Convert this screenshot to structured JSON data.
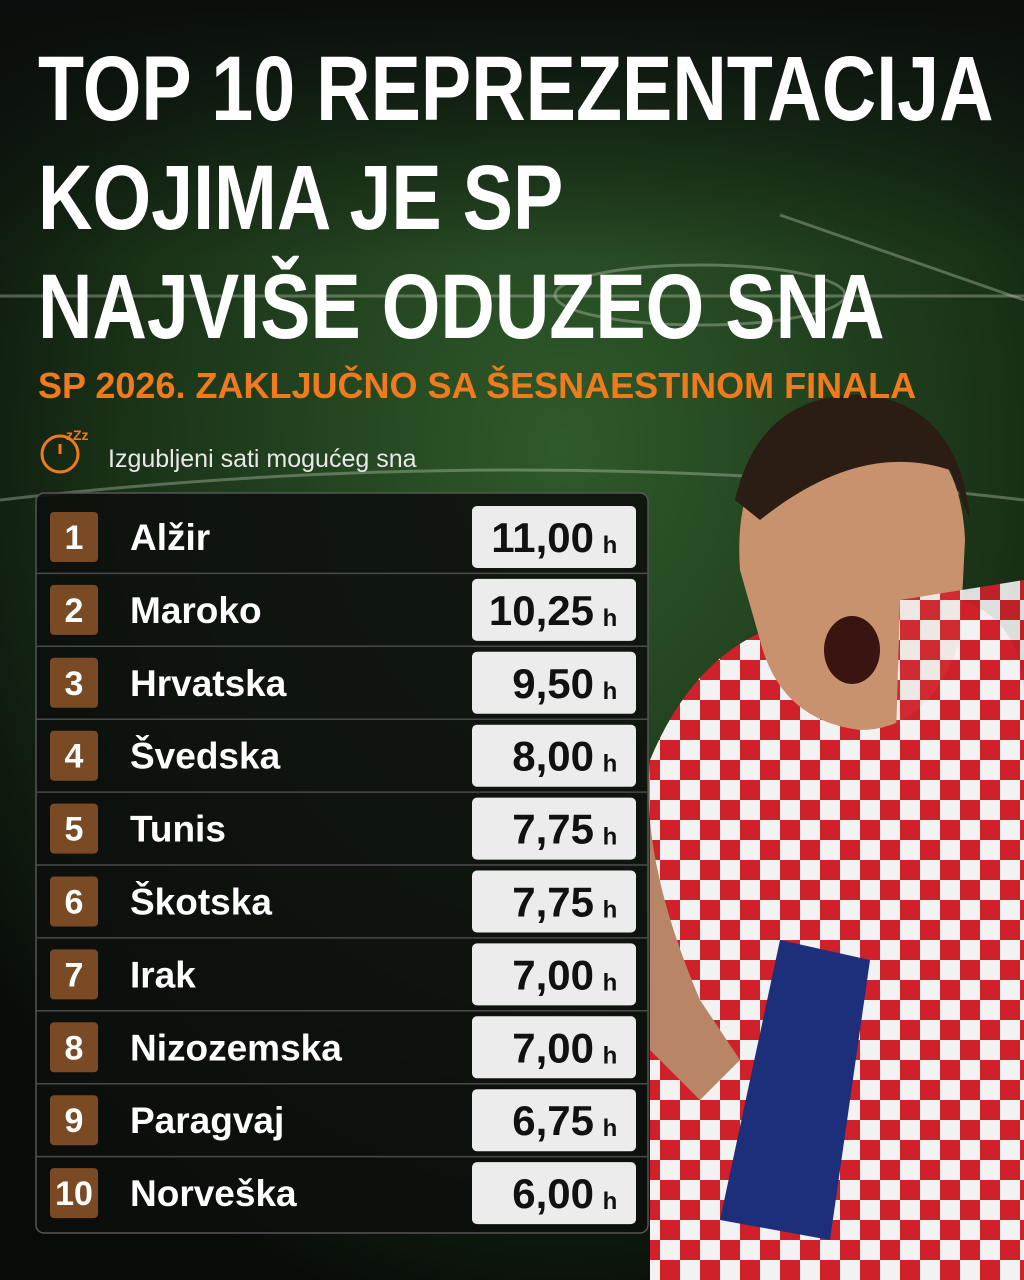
{
  "header": {
    "title_lines": [
      "TOP 10 REPREZENTACIJA",
      "KOJIMA JE SP",
      "NAJVIŠE ODUZEO SNA"
    ],
    "subtitle": "SP 2026. ZAKLJUČNO SA ŠESNAESTINOM FINALA",
    "legend": "Izgubljeni sati mogućeg sna"
  },
  "table": {
    "rows": [
      {
        "rank": 1,
        "team": "Alžir",
        "hours": "11,00",
        "unit": "h"
      },
      {
        "rank": 2,
        "team": "Maroko",
        "hours": "10,25",
        "unit": "h"
      },
      {
        "rank": 3,
        "team": "Hrvatska",
        "hours": "9,50",
        "unit": "h"
      },
      {
        "rank": 4,
        "team": "Švedska",
        "hours": "8,00",
        "unit": "h"
      },
      {
        "rank": 5,
        "team": "Tunis",
        "hours": "7,75",
        "unit": "h"
      },
      {
        "rank": 6,
        "team": "Škotska",
        "hours": "7,75",
        "unit": "h"
      },
      {
        "rank": 7,
        "team": "Irak",
        "hours": "7,00",
        "unit": "h"
      },
      {
        "rank": 8,
        "team": "Nizozemska",
        "hours": "7,00",
        "unit": "h"
      },
      {
        "rank": 9,
        "team": "Paragvaj",
        "hours": "6,75",
        "unit": "h"
      },
      {
        "rank": 10,
        "team": "Norveška",
        "hours": "6,00",
        "unit": "h"
      }
    ]
  }
}
